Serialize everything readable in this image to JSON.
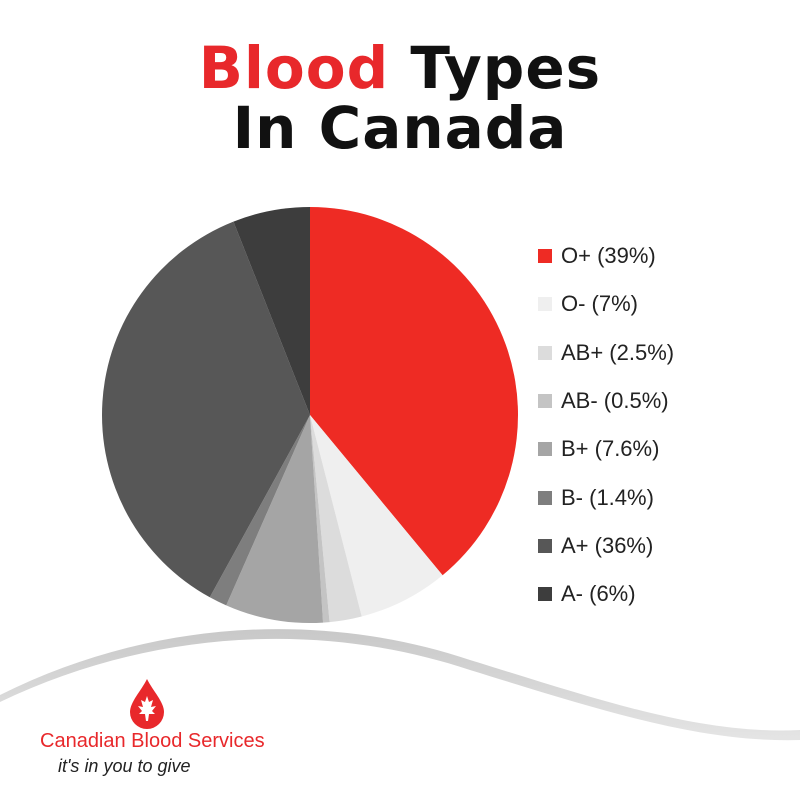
{
  "title": {
    "part1": "Blood",
    "part2": "Types",
    "line2": "In Canada",
    "accent_color": "#e8282b"
  },
  "chart_data": {
    "type": "pie",
    "title": "Blood Types In Canada",
    "slices": [
      {
        "label": "O+ (39%)",
        "value": 39,
        "color": "#ee2b24"
      },
      {
        "label": "O- (7%)",
        "value": 7,
        "color": "#efefef"
      },
      {
        "label": "AB+ (2.5%)",
        "value": 2.5,
        "color": "#dcdcdc"
      },
      {
        "label": "AB- (0.5%)",
        "value": 0.5,
        "color": "#c4c4c4"
      },
      {
        "label": "B+ (7.6%)",
        "value": 7.6,
        "color": "#a5a5a5"
      },
      {
        "label": "B- (1.4%)",
        "value": 1.4,
        "color": "#7e7e7e"
      },
      {
        "label": "A+ (36%)",
        "value": 36,
        "color": "#575757"
      },
      {
        "label": "A- (6%)",
        "value": 6,
        "color": "#3d3d3d"
      }
    ],
    "legend_position": "right"
  },
  "footer": {
    "org_name": "Canadian Blood Services",
    "tagline": "it's in you to give",
    "logo_icon": "blood-drop-maple-leaf-icon",
    "brand_color": "#e8282b"
  }
}
